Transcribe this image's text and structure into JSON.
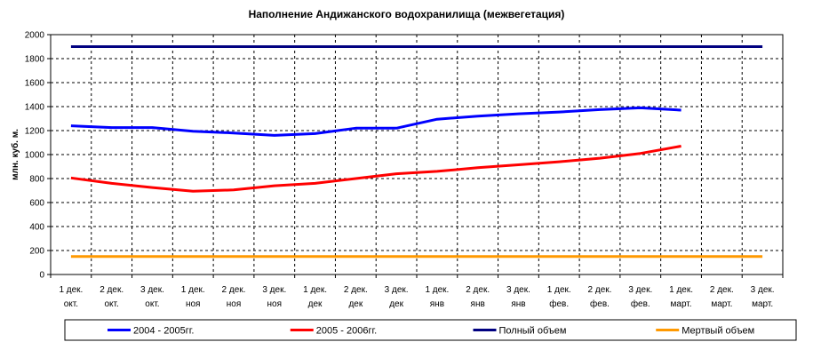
{
  "chart_data": {
    "type": "line",
    "title": "Наполнение Андижанского водохранилища (межвегетация)",
    "ylabel": "млн. куб. м.",
    "xlabel": "",
    "ylim": [
      0,
      2000
    ],
    "yticks": [
      0,
      200,
      400,
      600,
      800,
      1000,
      1200,
      1400,
      1600,
      1800,
      2000
    ],
    "grid": true,
    "legend": "bottom",
    "categories": [
      [
        "1 дек.",
        "окт."
      ],
      [
        "2 дек.",
        "окт."
      ],
      [
        "3 дек.",
        "окт."
      ],
      [
        "1 дек.",
        "ноя"
      ],
      [
        "2 дек.",
        "ноя"
      ],
      [
        "3 дек.",
        "ноя"
      ],
      [
        "1 дек.",
        "дек"
      ],
      [
        "2 дек.",
        "дек"
      ],
      [
        "3 дек.",
        "дек"
      ],
      [
        "1 дек.",
        "янв"
      ],
      [
        "2 дек.",
        "янв"
      ],
      [
        "3 дек.",
        "янв"
      ],
      [
        "1 дек.",
        "фев."
      ],
      [
        "2 дек.",
        "фев."
      ],
      [
        "3 дек.",
        "фев."
      ],
      [
        "1 дек.",
        "март."
      ],
      [
        "2 дек.",
        "март."
      ],
      [
        "3 дек.",
        "март."
      ]
    ],
    "series": [
      {
        "name": "2004 - 2005гг.",
        "color": "#0000ff",
        "values": [
          1240,
          1225,
          1225,
          1195,
          1180,
          1160,
          1175,
          1220,
          1220,
          1295,
          1320,
          1340,
          1355,
          1375,
          1390,
          1370,
          null,
          null
        ]
      },
      {
        "name": "2005 - 2006гг.",
        "color": "#ff0000",
        "values": [
          805,
          760,
          725,
          695,
          705,
          740,
          760,
          800,
          840,
          860,
          890,
          915,
          940,
          970,
          1010,
          1070,
          null,
          null
        ]
      },
      {
        "name": "Полный объем",
        "color": "#000080",
        "values": [
          1900,
          1900,
          1900,
          1900,
          1900,
          1900,
          1900,
          1900,
          1900,
          1900,
          1900,
          1900,
          1900,
          1900,
          1900,
          1900,
          1900,
          1900
        ]
      },
      {
        "name": "Мертвый объем",
        "color": "#ff9900",
        "values": [
          150,
          150,
          150,
          150,
          150,
          150,
          150,
          150,
          150,
          150,
          150,
          150,
          150,
          150,
          150,
          150,
          150,
          150
        ]
      }
    ]
  }
}
